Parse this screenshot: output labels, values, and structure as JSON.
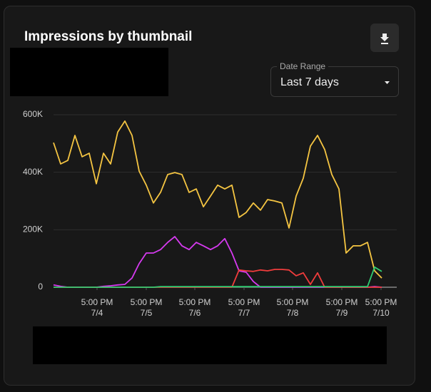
{
  "date_range": {
    "label": "Date Range",
    "value": "Last 7 days"
  },
  "chart_data": {
    "type": "line",
    "title": "Impressions by thumbnail",
    "x": [
      0,
      1,
      2,
      3,
      4,
      5,
      6,
      7,
      8,
      9,
      10,
      11,
      12,
      13,
      14,
      15,
      16,
      17,
      18,
      19,
      20,
      21,
      22,
      23,
      24,
      25,
      26,
      27,
      28,
      29,
      30,
      31,
      32,
      33,
      34,
      35,
      36,
      37,
      38,
      39,
      40,
      41,
      42,
      43,
      44,
      45,
      46
    ],
    "xlim": [
      0,
      46
    ],
    "xticks": [
      {
        "value": 6.1,
        "label": "5:00 PM",
        "date": "7/4"
      },
      {
        "value": 13,
        "label": "5:00 PM",
        "date": "7/5"
      },
      {
        "value": 19.8,
        "label": "5:00 PM",
        "date": "7/6"
      },
      {
        "value": 26.7,
        "label": "5:00 PM",
        "date": "7/7"
      },
      {
        "value": 33.5,
        "label": "5:00 PM",
        "date": "7/8"
      },
      {
        "value": 40.4,
        "label": "5:00 PM",
        "date": "7/9"
      },
      {
        "value": 45.9,
        "label": "5:00 PM",
        "date": "7/10"
      }
    ],
    "ylim": [
      0,
      600000
    ],
    "yticks": [
      0,
      {
        "value": 200000,
        "label": "200K"
      },
      {
        "value": 400000,
        "label": "400K"
      },
      {
        "value": 600000,
        "label": "600K"
      }
    ],
    "grid": true,
    "series": [
      {
        "color": "#f5c542",
        "values": [
          503000,
          429000,
          441000,
          528000,
          454000,
          466000,
          360000,
          466000,
          429000,
          540000,
          578000,
          528000,
          404000,
          355000,
          293000,
          330000,
          392000,
          399000,
          392000,
          330000,
          342000,
          280000,
          317000,
          355000,
          342000,
          355000,
          243000,
          260000,
          293000,
          268000,
          305000,
          300000,
          293000,
          206000,
          317000,
          379000,
          491000,
          528000,
          479000,
          392000,
          342000,
          119000,
          144000,
          144000,
          156000,
          57000,
          32000
        ]
      },
      {
        "color": "#d63af0",
        "values": [
          8000,
          3000,
          0,
          0,
          0,
          0,
          0,
          3000,
          5000,
          8000,
          10000,
          32000,
          82000,
          119000,
          119000,
          131000,
          156000,
          176000,
          144000,
          131000,
          156000,
          144000,
          131000,
          144000,
          169000,
          119000,
          57000,
          52000,
          20000,
          0,
          0,
          0,
          0,
          0,
          0,
          0,
          0,
          0,
          0,
          0,
          0,
          0,
          0,
          0,
          0,
          2000,
          0
        ]
      },
      {
        "color": "#f03c3c",
        "values": [
          0,
          0,
          0,
          0,
          0,
          0,
          0,
          0,
          0,
          0,
          0,
          0,
          0,
          0,
          0,
          0,
          0,
          0,
          0,
          0,
          0,
          0,
          0,
          0,
          0,
          0,
          60000,
          57000,
          55000,
          60000,
          57000,
          62000,
          62000,
          60000,
          40000,
          50000,
          10000,
          50000,
          0,
          0,
          0,
          0,
          0,
          0,
          0,
          0,
          0
        ]
      },
      {
        "color": "#2ecc71",
        "values": [
          0,
          0,
          0,
          0,
          0,
          0,
          0,
          0,
          0,
          0,
          0,
          0,
          0,
          0,
          0,
          2000,
          2000,
          2000,
          2000,
          2000,
          2000,
          2000,
          2000,
          2000,
          2000,
          2000,
          2000,
          2000,
          2000,
          2000,
          2000,
          2000,
          2000,
          2000,
          2000,
          2000,
          2000,
          2000,
          2000,
          2000,
          2000,
          2000,
          2000,
          2000,
          2000,
          70000,
          55000
        ]
      }
    ]
  }
}
